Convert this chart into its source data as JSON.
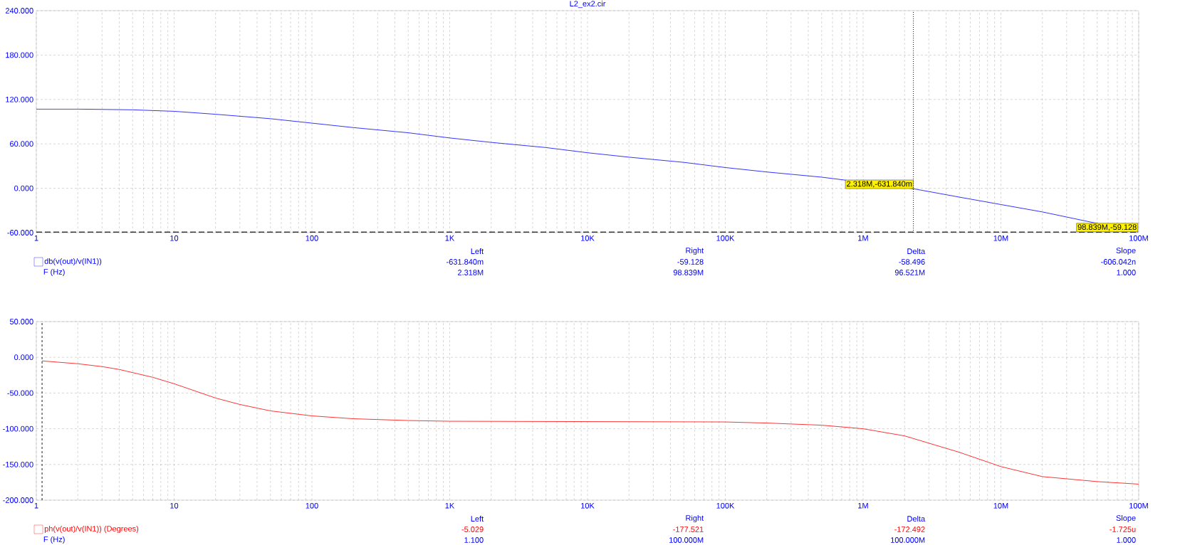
{
  "chart_data": [
    {
      "type": "line",
      "title": "L2_ex2.cir",
      "log": "x",
      "grid": true,
      "legend": "bottom left",
      "line_style": "solid",
      "xlim": [
        1,
        100000000
      ],
      "ylim": [
        -60,
        240
      ],
      "xticks": [
        1,
        10,
        100,
        {
          "value": 1000,
          "label": "1K"
        },
        {
          "value": 10000,
          "label": "10K"
        },
        {
          "value": 100000,
          "label": "100K"
        },
        {
          "value": 1000000,
          "label": "1M"
        },
        {
          "value": 10000000,
          "label": "10M"
        },
        {
          "value": 100000000,
          "label": "100M"
        }
      ],
      "yticks": [
        {
          "value": -60,
          "label": "-60.000"
        },
        {
          "value": 0,
          "label": "0.000"
        },
        {
          "value": 60,
          "label": "60.000"
        },
        {
          "value": 120,
          "label": "120.000"
        },
        {
          "value": 180,
          "label": "180.000"
        },
        {
          "value": 240,
          "label": "240.000"
        }
      ],
      "x": [
        1,
        2,
        5,
        10,
        20,
        50,
        100,
        200,
        500,
        1000,
        2000,
        5000,
        10000,
        20000,
        50000,
        100000,
        200000,
        500000,
        1000000,
        2318000,
        5000000,
        10000000,
        20000000,
        50000000,
        98839000
      ],
      "series": [
        {
          "name": "db(v(out)/v(IN1))",
          "color": "#0000ff",
          "values": [
            107,
            107,
            106,
            104,
            100,
            94,
            88,
            82,
            75,
            68,
            62,
            55,
            48,
            42,
            35,
            28,
            22,
            15,
            null,
            -0.63184,
            -12,
            -22,
            -32,
            null,
            -59.128
          ]
        }
      ],
      "ref_lines": [
        {
          "axis": "x",
          "value": 2318000,
          "line_style": "dotted",
          "color": "#000000"
        },
        {
          "axis": "y",
          "value": -59.128,
          "line_style": "dashed",
          "color": "#000000"
        }
      ],
      "annotations": [
        "Left",
        "Right",
        "Delta",
        "Slope",
        "-631.840m",
        "-59.128",
        "-58.496",
        "-606.042n",
        "F (Hz)",
        "2.318M",
        "98.839M",
        "96.521M",
        "1.000",
        {
          "text": "2.318M,-631.840m",
          "x": 2318000,
          "y": -0.63184
        },
        {
          "text": "98.839M,-59.128",
          "x": 98839000,
          "y": -59.128
        }
      ]
    },
    {
      "type": "line",
      "log": "x",
      "grid": true,
      "legend": "bottom left",
      "line_style": "solid",
      "xlim": [
        1,
        100000000
      ],
      "ylim": [
        -200,
        50
      ],
      "xticks": [
        1,
        10,
        100,
        {
          "value": 1000,
          "label": "1K"
        },
        {
          "value": 10000,
          "label": "10K"
        },
        {
          "value": 100000,
          "label": "100K"
        },
        {
          "value": 1000000,
          "label": "1M"
        },
        {
          "value": 10000000,
          "label": "10M"
        },
        {
          "value": 100000000,
          "label": "100M"
        }
      ],
      "yticks": [
        {
          "value": -200,
          "label": "-200.000"
        },
        {
          "value": -150,
          "label": "-150.000"
        },
        {
          "value": -100,
          "label": "-100.000"
        },
        {
          "value": -50,
          "label": "-50.000"
        },
        {
          "value": 0,
          "label": "0.000"
        },
        {
          "value": 50,
          "label": "50.000"
        }
      ],
      "x": [
        1.1,
        2,
        3,
        4,
        7,
        10,
        20,
        30,
        50,
        100,
        200,
        500,
        1000,
        10000,
        100000,
        200000,
        500000,
        1000000,
        2000000,
        5000000,
        10000000,
        20000000,
        50000000,
        100000000
      ],
      "series": [
        {
          "name": "ph(v(out)/v(IN1)) (Degrees)",
          "color": "#ff0000",
          "values": [
            -5.029,
            -9,
            -13,
            -17,
            -28,
            -37,
            -57,
            -66,
            -75,
            -82,
            -86,
            -88.5,
            -89.5,
            -90,
            -90.5,
            -92,
            -95,
            -100,
            -110,
            -133,
            -153,
            -167,
            -174,
            -177.521
          ]
        }
      ],
      "ref_lines": [
        {
          "axis": "x",
          "value": 1.1,
          "line_style": "dashed",
          "color": "#000000"
        }
      ],
      "annotations": [
        "Left",
        "Right",
        "Delta",
        "Slope",
        "-5.029",
        "-177.521",
        "-172.492",
        "-1.725u",
        "F (Hz)",
        "1.100",
        "100.000M",
        "100.000M",
        "1.000"
      ]
    }
  ]
}
